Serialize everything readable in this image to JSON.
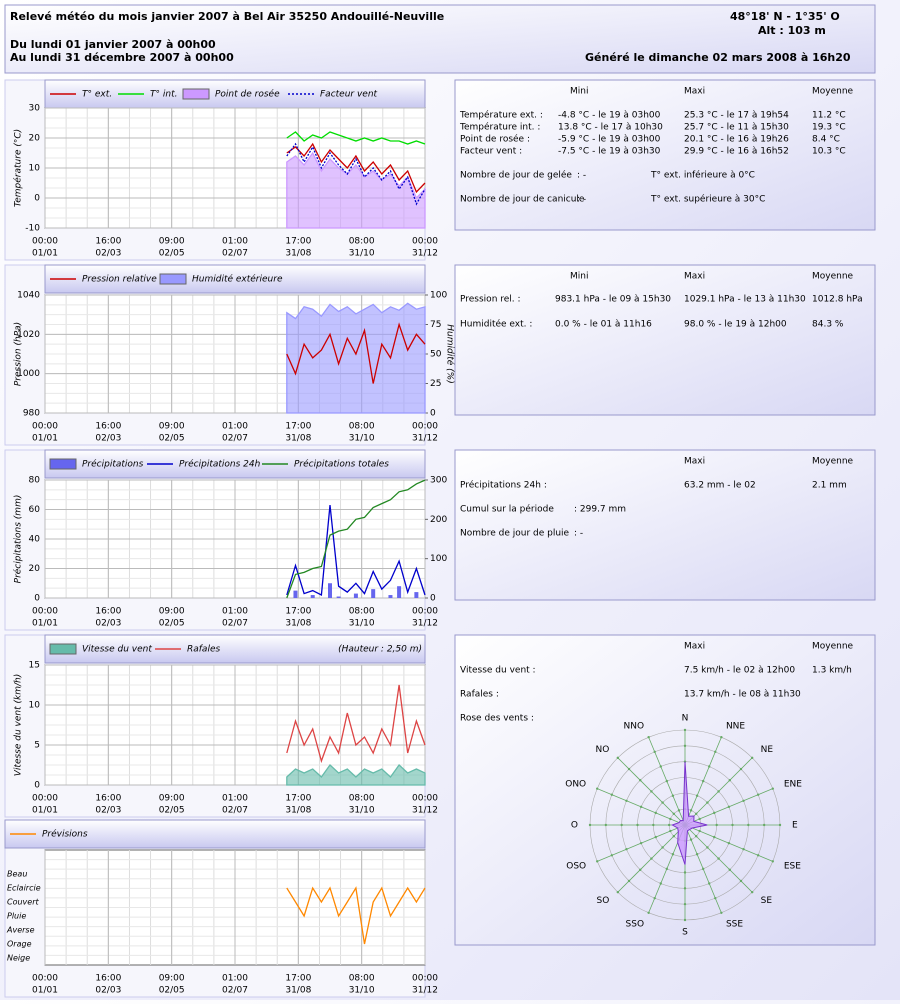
{
  "header": {
    "title": "Relevé météo du mois janvier 2007 à Bel Air 35250 Andouillé-Neuville",
    "coords": "48°18' N - 1°35' O",
    "altitude": "Alt : 103 m",
    "from": "Du lundi 01 janvier 2007 à 00h00",
    "to": "Au lundi 31 décembre 2007 à 00h00",
    "generated": "Généré le dimanche 02 mars 2008 à 16h20"
  },
  "xticks": [
    {
      "time": "00:00",
      "date": "01/01"
    },
    {
      "time": "16:00",
      "date": "02/03"
    },
    {
      "time": "09:00",
      "date": "02/05"
    },
    {
      "time": "01:00",
      "date": "02/07"
    },
    {
      "time": "17:00",
      "date": "31/08"
    },
    {
      "time": "08:00",
      "date": "31/10"
    },
    {
      "time": "00:00",
      "date": "31/12"
    }
  ],
  "chart_data": [
    {
      "type": "line",
      "ylabel": "Température (°C)",
      "ylim": [
        -10,
        30
      ],
      "yticks": [
        -10,
        0,
        10,
        20,
        30
      ],
      "grid": true,
      "series": [
        {
          "name": "T° ext.",
          "color": "#cc0000",
          "style": "line",
          "values": [
            null,
            null,
            null,
            null,
            null,
            null,
            null,
            null,
            null,
            null,
            null,
            null,
            null,
            null,
            null,
            null,
            null,
            null,
            null,
            null,
            null,
            null,
            null,
            null,
            null,
            null,
            null,
            null,
            15,
            17,
            14,
            18,
            12,
            16,
            13,
            10,
            14,
            9,
            12,
            8,
            11,
            6,
            9,
            2,
            5
          ]
        },
        {
          "name": "T° int.",
          "color": "#00dd00",
          "style": "line",
          "values": [
            null,
            null,
            null,
            null,
            null,
            null,
            null,
            null,
            null,
            null,
            null,
            null,
            null,
            null,
            null,
            null,
            null,
            null,
            null,
            null,
            null,
            null,
            null,
            null,
            null,
            null,
            null,
            null,
            20,
            22,
            19,
            21,
            20,
            22,
            21,
            20,
            19,
            20,
            19,
            20,
            19,
            19,
            18,
            19,
            18
          ]
        },
        {
          "name": "Point de rosée",
          "color": "#cc99ff",
          "style": "area",
          "values": [
            null,
            null,
            null,
            null,
            null,
            null,
            null,
            null,
            null,
            null,
            null,
            null,
            null,
            null,
            null,
            null,
            null,
            null,
            null,
            null,
            null,
            null,
            null,
            null,
            null,
            null,
            null,
            null,
            12,
            14,
            11,
            15,
            9,
            13,
            10,
            8,
            11,
            7,
            9,
            6,
            8,
            4,
            7,
            0,
            3
          ]
        },
        {
          "name": "Facteur vent",
          "color": "#0000cc",
          "style": "dotted",
          "values": [
            null,
            null,
            null,
            null,
            null,
            null,
            null,
            null,
            null,
            null,
            null,
            null,
            null,
            null,
            null,
            null,
            null,
            null,
            null,
            null,
            null,
            null,
            null,
            null,
            null,
            null,
            null,
            null,
            14,
            18,
            12,
            17,
            10,
            15,
            11,
            8,
            13,
            7,
            10,
            6,
            9,
            3,
            7,
            -2,
            3
          ]
        }
      ]
    },
    {
      "type": "line",
      "ylabel": "Pression (hPa)",
      "y2label": "Humidité (%)",
      "ylim": [
        980,
        1040
      ],
      "yticks": [
        980,
        1000,
        1020,
        1040
      ],
      "y2lim": [
        0,
        100
      ],
      "y2ticks": [
        0,
        25,
        50,
        75,
        100
      ],
      "grid": true,
      "series": [
        {
          "name": "Pression relative",
          "color": "#cc0000",
          "style": "line",
          "values": [
            null,
            null,
            null,
            null,
            null,
            null,
            null,
            null,
            null,
            null,
            null,
            null,
            null,
            null,
            null,
            null,
            null,
            null,
            null,
            null,
            null,
            null,
            null,
            null,
            null,
            null,
            null,
            null,
            1010,
            1000,
            1015,
            1008,
            1012,
            1020,
            1005,
            1018,
            1010,
            1022,
            995,
            1015,
            1008,
            1025,
            1012,
            1020,
            1015
          ]
        },
        {
          "name": "Humidité extérieure",
          "color": "#9999ff",
          "style": "area",
          "axis": "y2",
          "values": [
            null,
            null,
            null,
            null,
            null,
            null,
            null,
            null,
            null,
            null,
            null,
            null,
            null,
            null,
            null,
            null,
            null,
            null,
            null,
            null,
            null,
            null,
            null,
            null,
            null,
            null,
            null,
            null,
            85,
            80,
            90,
            88,
            82,
            92,
            86,
            90,
            84,
            88,
            92,
            85,
            90,
            87,
            93,
            88,
            90
          ]
        }
      ]
    },
    {
      "type": "line",
      "ylabel": "Précipitations (mm)",
      "ylim": [
        0,
        80
      ],
      "yticks": [
        0,
        20,
        40,
        60,
        80
      ],
      "y2lim": [
        0,
        300
      ],
      "y2ticks": [
        0,
        100,
        200,
        300
      ],
      "grid": true,
      "series": [
        {
          "name": "Précipitations",
          "color": "#6666ee",
          "style": "bar",
          "values": [
            null,
            null,
            null,
            null,
            null,
            null,
            null,
            null,
            null,
            null,
            null,
            null,
            null,
            null,
            null,
            null,
            null,
            null,
            null,
            null,
            null,
            null,
            null,
            null,
            null,
            null,
            null,
            null,
            0,
            5,
            0,
            2,
            0,
            10,
            1,
            0,
            3,
            0,
            6,
            0,
            2,
            8,
            0,
            4,
            0
          ]
        },
        {
          "name": "Précipitations 24h",
          "color": "#0000cc",
          "style": "line",
          "values": [
            null,
            null,
            null,
            null,
            null,
            null,
            null,
            null,
            null,
            null,
            null,
            null,
            null,
            null,
            null,
            null,
            null,
            null,
            null,
            null,
            null,
            null,
            null,
            null,
            null,
            null,
            null,
            null,
            2,
            22,
            3,
            5,
            2,
            63,
            8,
            4,
            10,
            3,
            18,
            6,
            12,
            25,
            4,
            20,
            2
          ]
        },
        {
          "name": "Précipitations totales",
          "color": "#228822",
          "style": "line",
          "axis": "y2",
          "values": [
            null,
            null,
            null,
            null,
            null,
            null,
            null,
            null,
            null,
            null,
            null,
            null,
            null,
            null,
            null,
            null,
            null,
            null,
            null,
            null,
            null,
            null,
            null,
            null,
            null,
            null,
            null,
            null,
            0,
            60,
            65,
            75,
            80,
            160,
            170,
            175,
            200,
            205,
            230,
            240,
            250,
            270,
            275,
            290,
            299.7
          ]
        }
      ]
    },
    {
      "type": "line",
      "ylabel": "Vitesse du vent (km/h)",
      "note": "(Hauteur : 2,50 m)",
      "ylim": [
        0,
        15
      ],
      "yticks": [
        0,
        5,
        10,
        15
      ],
      "grid": true,
      "series": [
        {
          "name": "Vitesse du vent",
          "color": "#66bbaa",
          "style": "area",
          "values": [
            null,
            null,
            null,
            null,
            null,
            null,
            null,
            null,
            null,
            null,
            null,
            null,
            null,
            null,
            null,
            null,
            null,
            null,
            null,
            null,
            null,
            null,
            null,
            null,
            null,
            null,
            null,
            null,
            1,
            2,
            1.5,
            2,
            1,
            2.5,
            1.5,
            2,
            1,
            2,
            1.5,
            2,
            1,
            2.5,
            1.5,
            2,
            1.5
          ]
        },
        {
          "name": "Rafales",
          "color": "#dd4444",
          "style": "line",
          "values": [
            null,
            null,
            null,
            null,
            null,
            null,
            null,
            null,
            null,
            null,
            null,
            null,
            null,
            null,
            null,
            null,
            null,
            null,
            null,
            null,
            null,
            null,
            null,
            null,
            null,
            null,
            null,
            null,
            4,
            8,
            5,
            7,
            3,
            6,
            4,
            9,
            5,
            6,
            4,
            7,
            5,
            12.5,
            4,
            8,
            5
          ]
        }
      ]
    },
    {
      "type": "category-line",
      "ycategories": [
        "Beau",
        "Eclaircie",
        "Couvert",
        "Pluie",
        "Averse",
        "Orage",
        "Neige"
      ],
      "grid": true,
      "series": [
        {
          "name": "Prévisions",
          "color": "#ff8800",
          "style": "line",
          "values": [
            null,
            null,
            null,
            null,
            null,
            null,
            null,
            null,
            null,
            null,
            null,
            null,
            null,
            null,
            null,
            null,
            null,
            null,
            null,
            null,
            null,
            null,
            null,
            null,
            null,
            null,
            null,
            null,
            "Eclaircie",
            "Couvert",
            "Pluie",
            "Eclaircie",
            "Couvert",
            "Eclaircie",
            "Pluie",
            "Couvert",
            "Eclaircie",
            "Orage",
            "Couvert",
            "Eclaircie",
            "Pluie",
            "Couvert",
            "Eclaircie",
            "Couvert",
            "Eclaircie"
          ]
        }
      ]
    },
    {
      "type": "windrose",
      "rlim": [
        0,
        6
      ],
      "fill": "#cc99ff",
      "stroke": "#7733cc",
      "categories": [
        "N",
        "NNE",
        "NE",
        "ENE",
        "E",
        "ESE",
        "SE",
        "SSE",
        "S",
        "SSO",
        "SO",
        "OSO",
        "O",
        "ONO",
        "NO",
        "NNO"
      ],
      "values": [
        4,
        0.6,
        0.8,
        0.6,
        1.4,
        0.5,
        0.4,
        0.4,
        2.5,
        1.2,
        0.6,
        0.5,
        0.8,
        0.4,
        0.4,
        0.3
      ]
    }
  ],
  "stats": [
    {
      "columns": [
        "Mini",
        "Maxi",
        "Moyenne"
      ],
      "rows": [
        [
          "Température ext. :",
          "-4.8 °C - le 19 à 03h00",
          "25.3 °C - le 17 à 19h54",
          "11.2 °C"
        ],
        [
          "Température int. :",
          "13.8 °C - le 17 à 10h30",
          "25.7 °C - le 11 à 15h30",
          "19.3 °C"
        ],
        [
          "Point de rosée :",
          "-5.9 °C - le 19 à 03h00",
          "20.1 °C - le 16 à 19h26",
          "8.4 °C"
        ],
        [
          "Facteur vent :",
          "-7.5 °C - le 19 à 03h30",
          "29.9 °C - le 16 à 16h52",
          "10.3 °C"
        ],
        [
          "Nombre de jour de gelée",
          ": -",
          "T° ext. inférieure à 0°C"
        ],
        [
          "Nombre de jour de canicule",
          ": -",
          "T° ext. supérieure à 30°C"
        ]
      ]
    },
    {
      "columns": [
        "Mini",
        "Maxi",
        "Moyenne"
      ],
      "rows": [
        [
          "Pression rel. :",
          "983.1 hPa - le 09 à 15h30",
          "1029.1 hPa - le 13 à 11h30",
          "1012.8 hPa"
        ],
        [
          "Humiditée ext. :",
          "0.0 % - le 01 à 11h16",
          "98.0 % - le 19 à 12h00",
          "84.3 %"
        ]
      ]
    },
    {
      "columns": [
        "Maxi",
        "Moyenne"
      ],
      "rows": [
        [
          "Précipitations 24h :",
          "63.2 mm - le 02",
          "2.1 mm"
        ],
        [
          "Cumul sur la période",
          ": 299.7 mm"
        ],
        [
          "Nombre de jour de pluie",
          ": -"
        ]
      ]
    },
    {
      "columns": [
        "Maxi",
        "Moyenne"
      ],
      "rows": [
        [
          "Vitesse du vent :",
          "7.5 km/h - le 02 à 12h00",
          "1.3 km/h"
        ],
        [
          "Rafales :",
          "13.7 km/h - le 08 à 11h30"
        ],
        [
          "Rose des vents :"
        ]
      ]
    }
  ]
}
